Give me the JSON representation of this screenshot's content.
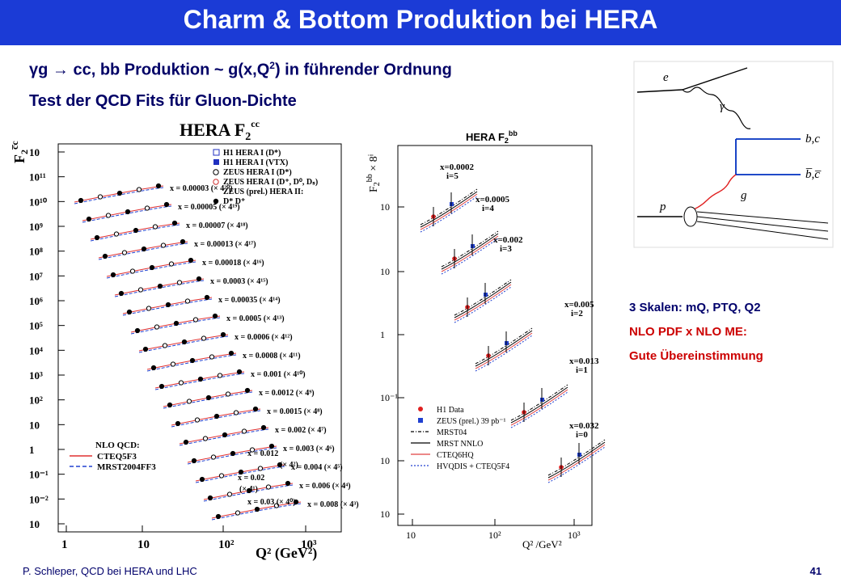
{
  "slide": {
    "title": "Charm & Bottom Produktion bei HERA",
    "bullet1": {
      "prefix": "γg → cc, bb Produktion ~ g(x,Q",
      "sup": "2",
      "suffix": ") in führender Ordnung"
    },
    "bullet2": "Test der QCD Fits für Gluon-Dichte",
    "notes": [
      "3 Skalen: mQ, PTQ, Q2",
      "NLO PDF x NLO ME:",
      "Gute Übereinstimmung"
    ],
    "footer_left": "P. Schleper,   QCD bei HERA und LHC",
    "page_number": "41",
    "colors": {
      "title_bar": "#1b3bd6",
      "text_dark_blue": "#00006b",
      "accent_red": "#cc0000"
    }
  },
  "chart_data": [
    {
      "type": "scatter",
      "title": "HERA F",
      "title_sup": "cc",
      "title_sub": "2",
      "ylabel": "F",
      "ylabel_sup": "c̅c",
      "ylabel_sub": "2",
      "xlabel": "Q² (GeV²)",
      "x_scale": "log",
      "x_ticks": [
        "1",
        "10",
        "10²",
        "10³"
      ],
      "y_ticks": [
        "10",
        "10¹¹",
        "10¹⁰",
        "10⁹",
        "10⁸",
        "10⁷",
        "10⁶",
        "10⁵",
        "10⁴",
        "10³",
        "10²",
        "10",
        "1",
        "10⁻¹",
        "10⁻²",
        "10"
      ],
      "legend_top": [
        {
          "label": "H1 HERA I (D*)",
          "marker": "open-square",
          "color": "#2030c0"
        },
        {
          "label": "H1 HERA I (VTX)",
          "marker": "filled-square",
          "color": "#2030c0"
        },
        {
          "label": "ZEUS HERA I (D*)",
          "marker": "open-circle",
          "color": "#000000"
        },
        {
          "label": "ZEUS HERA I (D⁺, D⁰, Dₛ)",
          "marker": "open-circle",
          "color": "#d03030"
        },
        {
          "label": "ZEUS (prel.) HERA II:",
          "marker": "none",
          "color": "#000000"
        },
        {
          "label": "D*   D⁺",
          "marker": "filled-circle",
          "color": "#000000"
        }
      ],
      "legend_bottom_title": "NLO QCD:",
      "legend_bottom": [
        {
          "label": "CTEQ5F3",
          "color": "#e03030",
          "dash": "solid"
        },
        {
          "label": "MRST2004FF3",
          "color": "#2040d0",
          "dash": "dashed"
        }
      ],
      "series_labels": [
        "x = 0.00003 (× 4²⁰)",
        "x = 0.00005 (× 4¹⁹)",
        "x = 0.00007 (× 4¹⁸)",
        "x = 0.00013 (× 4¹⁷)",
        "x = 0.00018 (× 4¹⁶)",
        "x = 0.0003 (× 4¹⁵)",
        "x = 0.00035 (× 4¹⁴)",
        "x = 0.0005 (× 4¹³)",
        "x = 0.0006 (× 4¹²)",
        "x = 0.0008 (× 4¹¹)",
        "x = 0.001 (× 4¹⁰)",
        "x = 0.0012 (× 4⁹)",
        "x = 0.0015 (× 4⁸)",
        "x = 0.002 (× 4⁷)",
        "x = 0.003 (× 4⁶)",
        "x = 0.004 (× 4⁵)",
        "x = 0.006 (× 4⁴)",
        "x = 0.008 (× 4³)",
        "x = 0.012",
        "(× 4²)",
        "x = 0.02",
        "(× 4¹)",
        "x = 0.03 (× 4⁰)"
      ]
    },
    {
      "type": "scatter",
      "title": "HERA F",
      "title_sub": "2",
      "title_sup": "bb",
      "ylabel": "F",
      "ylabel_sup": "bb",
      "ylabel_sub": "2",
      "ylabel_suffix": " × 8ⁱ",
      "xlabel": "Q² /GeV²",
      "x_scale": "log",
      "x_ticks": [
        "10",
        "10²",
        "10³"
      ],
      "y_ticks": [
        "10",
        "10",
        "1",
        "10⁻¹",
        "10",
        "10"
      ],
      "series_labels": [
        {
          "x": "x=0.0002",
          "i": "i=5"
        },
        {
          "x": "x=0.0005",
          "i": "i=4"
        },
        {
          "x": "x=0.002",
          "i": "i=3"
        },
        {
          "x": "x=0.005",
          "i": "i=2"
        },
        {
          "x": "x=0.013",
          "i": "i=1"
        },
        {
          "x": "x=0.032",
          "i": "i=0"
        }
      ],
      "legend": [
        {
          "label": "H1 Data",
          "marker": "filled-circle",
          "color": "#e02020"
        },
        {
          "label": "ZEUS (prel.) 39 pb⁻¹",
          "marker": "filled-square",
          "color": "#2040d0"
        },
        {
          "label": "MRST04",
          "color": "#000000",
          "dash": "dashdot"
        },
        {
          "label": "MRST NNLO",
          "color": "#000000",
          "dash": "solid"
        },
        {
          "label": "CTEQ6HQ",
          "color": "#e04040",
          "dash": "solid"
        },
        {
          "label": "HVQDIS + CTEQ5F4",
          "color": "#2040d0",
          "dash": "dotted"
        }
      ]
    },
    {
      "type": "diagram",
      "labels": [
        "e",
        "γ",
        "b,c",
        "b̅,c̅",
        "g",
        "p"
      ]
    }
  ]
}
